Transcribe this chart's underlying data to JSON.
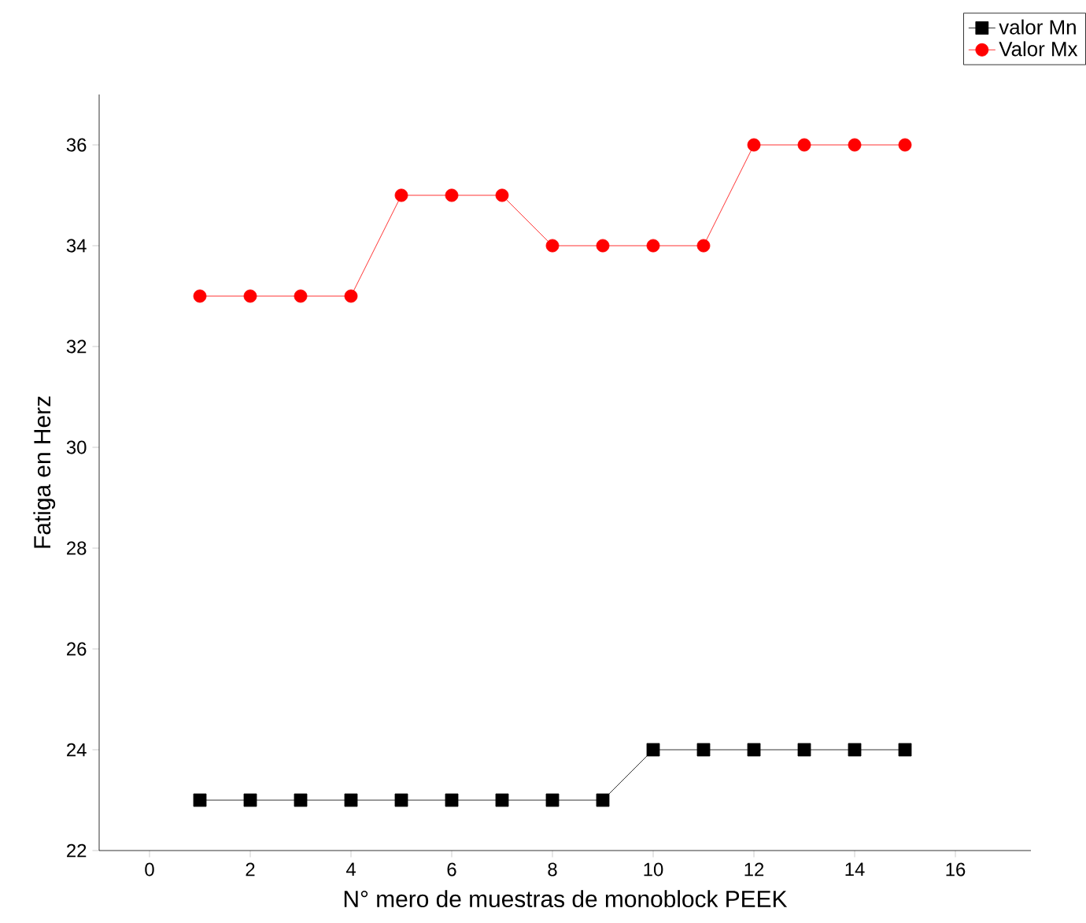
{
  "chart_data": {
    "type": "line",
    "xlabel": "N° mero de muestras de monoblock PEEK",
    "ylabel": "Fatiga en Herz",
    "x": [
      1,
      2,
      3,
      4,
      5,
      6,
      7,
      8,
      9,
      10,
      11,
      12,
      13,
      14,
      15
    ],
    "series": [
      {
        "name": "valor Mn",
        "color": "#000000",
        "marker": "square",
        "values": [
          23,
          23,
          23,
          23,
          23,
          23,
          23,
          23,
          23,
          24,
          24,
          24,
          24,
          24,
          24
        ]
      },
      {
        "name": "Valor Mx",
        "color": "#ff0000",
        "marker": "circle",
        "values": [
          33,
          33,
          33,
          33,
          35,
          35,
          35,
          34,
          34,
          34,
          34,
          36,
          36,
          36,
          36
        ]
      }
    ],
    "xlim": [
      -1,
      17.5
    ],
    "xticks": [
      0,
      2,
      4,
      6,
      8,
      10,
      12,
      14,
      16
    ],
    "ylim": [
      22,
      37
    ],
    "yticks": [
      22,
      24,
      26,
      28,
      30,
      32,
      34,
      36
    ],
    "legend": "top right",
    "grid": false
  }
}
